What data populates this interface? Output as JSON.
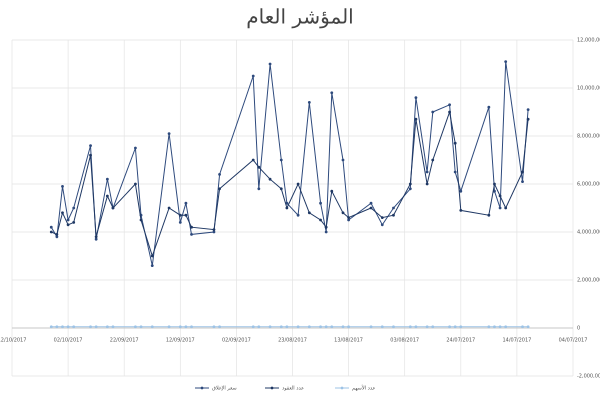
{
  "chart_data": {
    "type": "line",
    "title": "المؤشر العام",
    "x": [
      "05/10/2017",
      "04/10/2017",
      "03/10/2017",
      "02/10/2017",
      "01/10/2017",
      "28/09/2017",
      "27/09/2017",
      "25/09/2017",
      "24/09/2017",
      "20/09/2017",
      "19/09/2017",
      "17/09/2017",
      "14/09/2017",
      "12/09/2017",
      "11/09/2017",
      "10/09/2017",
      "06/09/2017",
      "05/09/2017",
      "30/08/2017",
      "29/08/2017",
      "27/08/2017",
      "25/08/2017",
      "24/08/2017",
      "22/08/2017",
      "20/08/2017",
      "18/08/2017",
      "17/08/2017",
      "16/08/2017",
      "14/08/2017",
      "13/08/2017",
      "09/08/2017",
      "07/08/2017",
      "05/08/2017",
      "02/08/2017",
      "01/08/2017",
      "30/07/2017",
      "29/07/2017",
      "26/07/2017",
      "25/07/2017",
      "24/07/2017",
      "19/07/2017",
      "18/07/2017",
      "17/07/2017",
      "16/07/2017",
      "13/07/2017",
      "12/07/2017"
    ],
    "series": [
      {
        "name": "سعر الإغلاق",
        "color": "#2e4a7d",
        "values": [
          4200000,
          3800000,
          5900000,
          4500000,
          5000000,
          7600000,
          3700000,
          6200000,
          5000000,
          7500000,
          4700000,
          2600000,
          8100000,
          4400000,
          5200000,
          3900000,
          4000000,
          6400000,
          10500000,
          5800000,
          11000000,
          7000000,
          5200000,
          4700000,
          9400000,
          5200000,
          4000000,
          9800000,
          7000000,
          4500000,
          5200000,
          4300000,
          5000000,
          5800000,
          9600000,
          6500000,
          9000000,
          9300000,
          6500000,
          5700000,
          9200000,
          5700000,
          5000000,
          11100000,
          6100000,
          9100000
        ]
      },
      {
        "name": "عدد العقود",
        "color": "#1f3864",
        "values": [
          4000000,
          3900000,
          4800000,
          4300000,
          4400000,
          7200000,
          3800000,
          5500000,
          5000000,
          6000000,
          4500000,
          3000000,
          5000000,
          4700000,
          4700000,
          4200000,
          4100000,
          5800000,
          7000000,
          6700000,
          6200000,
          5800000,
          5000000,
          6000000,
          4800000,
          4500000,
          4200000,
          5700000,
          4800000,
          4600000,
          5000000,
          4600000,
          4700000,
          6000000,
          8700000,
          6000000,
          7000000,
          9000000,
          7700000,
          4900000,
          4700000,
          6000000,
          5500000,
          5000000,
          6500000,
          8700000
        ]
      },
      {
        "name": "عدد الأسهم",
        "color": "#9dc3e6",
        "values": [
          50000,
          50000,
          50000,
          50000,
          50000,
          50000,
          50000,
          50000,
          50000,
          50000,
          50000,
          50000,
          50000,
          50000,
          50000,
          50000,
          50000,
          50000,
          50000,
          50000,
          50000,
          50000,
          50000,
          50000,
          50000,
          50000,
          50000,
          50000,
          50000,
          50000,
          50000,
          50000,
          50000,
          50000,
          50000,
          50000,
          50000,
          50000,
          50000,
          50000,
          50000,
          50000,
          50000,
          50000,
          50000,
          50000
        ]
      }
    ],
    "xlim": [
      "12/10/2017",
      "04/07/2017"
    ],
    "xticks": [
      "12/10/2017",
      "02/10/2017",
      "22/09/2017",
      "12/09/2017",
      "02/09/2017",
      "23/08/2017",
      "13/08/2017",
      "03/08/2017",
      "24/07/2017",
      "14/07/2017",
      "04/07/2017"
    ],
    "ylim": [
      -2000000,
      12000000
    ],
    "yticks": [
      {
        "value": -2000000,
        "label": "-2,000,000"
      },
      0,
      {
        "value": 2000000,
        "label": "2,000,000"
      },
      {
        "value": 4000000,
        "label": "4,000,000"
      },
      {
        "value": 6000000,
        "label": "6,000,000"
      },
      {
        "value": 8000000,
        "label": "8,000,000"
      },
      {
        "value": 10000000,
        "label": "10,000,000"
      },
      {
        "value": 12000000,
        "label": "12,000,000"
      }
    ],
    "grid": true,
    "y_axis_side": "right",
    "legend": "bottom"
  }
}
